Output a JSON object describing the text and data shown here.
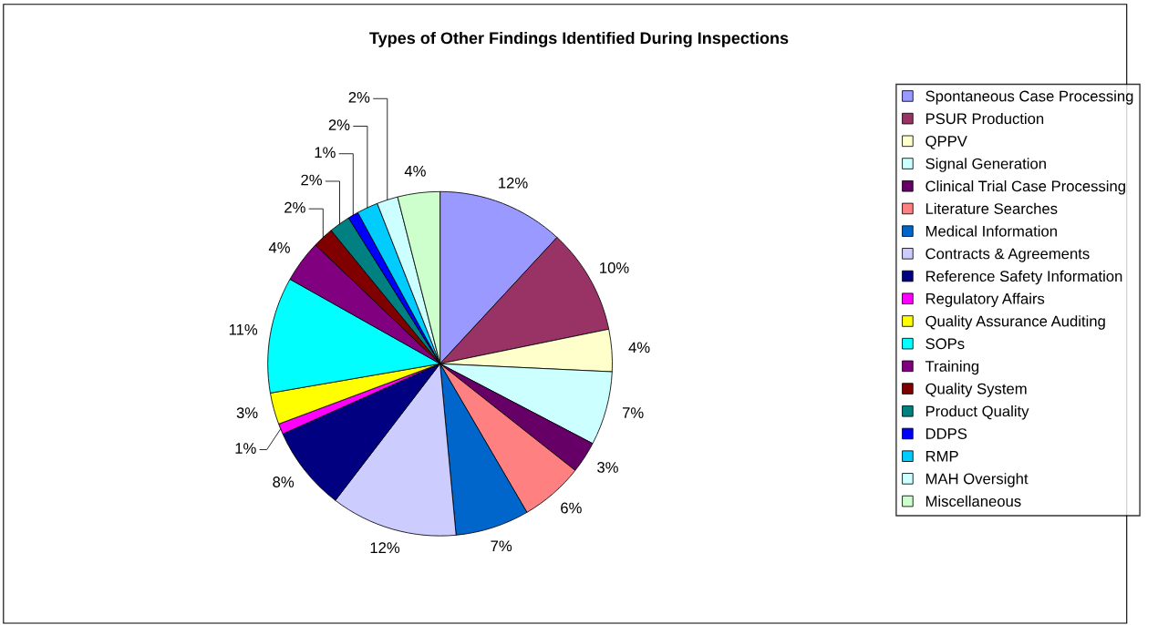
{
  "chart_data": {
    "type": "pie",
    "title": "Types of Other Findings Identified During Inspections",
    "categories": [
      "Spontaneous Case Processing",
      "PSUR Production",
      "QPPV",
      "Signal Generation",
      "Clinical Trial Case Processing",
      "Literature Searches",
      "Medical Information",
      "Contracts & Agreements",
      "Reference Safety Information",
      "Regulatory Affairs",
      "Quality Assurance Auditing",
      "SOPs",
      "Training",
      "Quality System",
      "Product Quality",
      "DDPS",
      "RMP",
      "MAH Oversight",
      "Miscellaneous"
    ],
    "values": [
      12,
      10,
      4,
      7,
      3,
      6,
      7,
      12,
      8,
      1,
      3,
      11,
      4,
      2,
      2,
      1,
      2,
      2,
      4
    ],
    "colors": [
      "#9999ff",
      "#993366",
      "#ffffcc",
      "#ccffff",
      "#660066",
      "#ff8080",
      "#0066cc",
      "#ccccff",
      "#000080",
      "#ff00ff",
      "#ffff00",
      "#00ffff",
      "#800080",
      "#800000",
      "#008080",
      "#0000ff",
      "#00ccff",
      "#ccffff",
      "#ccffcc"
    ],
    "value_labels": [
      "12%",
      "10%",
      "4%",
      "7%",
      "3%",
      "6%",
      "7%",
      "12%",
      "8%",
      "1%",
      "3%",
      "11%",
      "4%",
      "2%",
      "2%",
      "1%",
      "2%",
      "2%",
      "4%"
    ],
    "legend": "right"
  }
}
